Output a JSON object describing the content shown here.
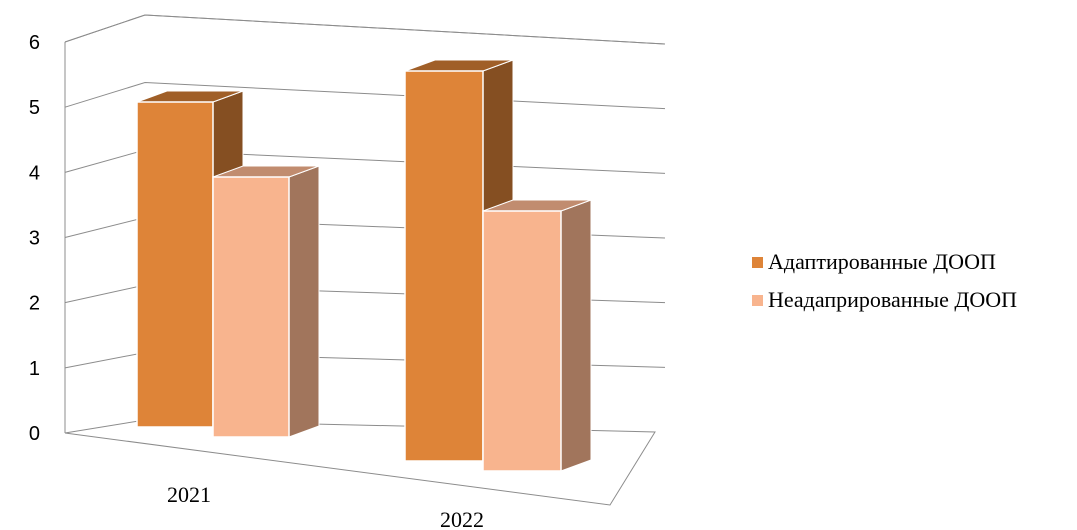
{
  "chart_data": {
    "type": "bar",
    "categories": [
      "2021",
      "2022"
    ],
    "series": [
      {
        "name": "Адаптированные ДООП",
        "values": [
          5,
          6
        ],
        "color": "#DE8438"
      },
      {
        "name": "Неадапрированные ДООП",
        "values": [
          4,
          4
        ],
        "color": "#F8B48E"
      }
    ],
    "ylim": [
      0,
      6
    ],
    "yticks": [
      "0",
      "1",
      "2",
      "3",
      "4",
      "5",
      "6"
    ],
    "grid": true,
    "legend_position": "right",
    "style": "3d-clustered-column"
  }
}
